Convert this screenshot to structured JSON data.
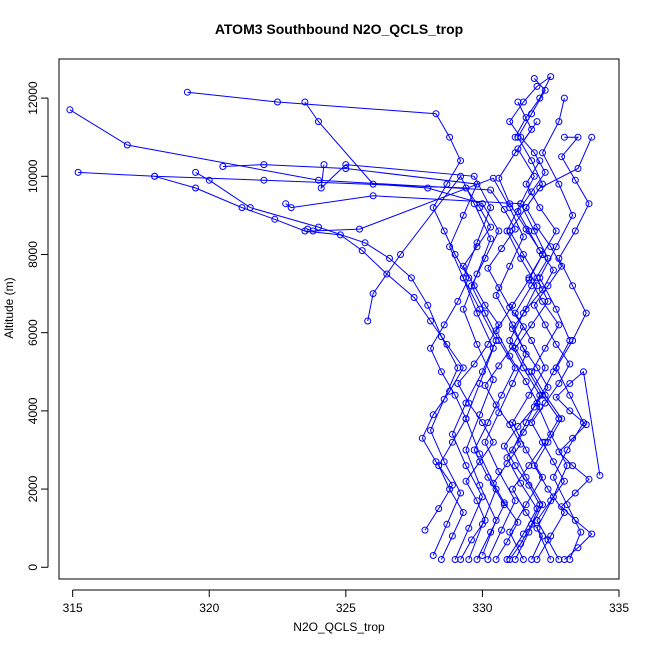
{
  "chart_data": {
    "type": "line",
    "title": "ATOM3 Southbound N2O_QCLS_trop",
    "xlabel": "N2O_QCLS_trop",
    "ylabel": "Altitude (m)",
    "xlim": [
      314.5,
      335
    ],
    "ylim": [
      -300,
      13000
    ],
    "xticks": [
      315,
      320,
      325,
      330,
      335
    ],
    "yticks": [
      0,
      2000,
      4000,
      6000,
      8000,
      10000,
      12000
    ],
    "grid": false,
    "legend": "none",
    "marker": "open-circle",
    "color": "#0000ff",
    "series": [
      {
        "x": [
          331.0,
          331.4,
          331.8,
          332.1,
          331.7,
          331.2,
          330.8,
          331.3,
          331.9,
          332.4,
          332.0,
          331.5,
          331.1,
          331.6,
          332.2,
          332.6,
          332.1,
          331.7,
          331.3,
          331.8,
          332.3,
          331.9,
          331.4,
          331.0,
          331.5,
          332.0,
          332.5,
          332.1,
          331.6,
          331.2
        ],
        "y": [
          200,
          600,
          1100,
          1600,
          2100,
          2600,
          3100,
          3600,
          4100,
          4600,
          5100,
          5600,
          6100,
          6600,
          7100,
          7600,
          8100,
          8600,
          9100,
          9600,
          10100,
          10600,
          11000,
          11400,
          11900,
          12300,
          12550,
          12000,
          11500,
          11000
        ]
      },
      {
        "x": [
          329.2,
          329.6,
          330.1,
          329.8,
          329.4,
          329.9,
          330.4,
          330.0,
          329.5,
          329.1,
          329.7,
          330.2,
          330.6,
          330.1,
          329.7,
          329.3,
          329.8,
          330.3,
          329.9,
          329.4,
          322.0,
          318.0,
          315.2
        ],
        "y": [
          200,
          700,
          1200,
          1700,
          2200,
          2700,
          3200,
          3700,
          4200,
          4700,
          5200,
          5700,
          6200,
          6700,
          7200,
          7700,
          8200,
          8700,
          9200,
          9700,
          9900,
          10000,
          10100
        ]
      },
      {
        "x": [
          332.8,
          332.4,
          332.0,
          332.5,
          333.0,
          332.6,
          332.2,
          331.8,
          332.3,
          332.8,
          333.2,
          332.7,
          332.3,
          331.9,
          332.4,
          332.9,
          332.5,
          332.0,
          331.6,
          332.1,
          333.5,
          334.0
        ],
        "y": [
          200,
          700,
          1200,
          1700,
          2200,
          2700,
          3200,
          3700,
          4200,
          4700,
          5200,
          5700,
          6200,
          6700,
          7200,
          7700,
          8200,
          8700,
          9200,
          9700,
          10200,
          11000
        ]
      },
      {
        "x": [
          330.5,
          330.9,
          331.3,
          330.8,
          330.4,
          330.9,
          331.4,
          331.0,
          330.5,
          330.1,
          330.6,
          331.1,
          331.5,
          331.0,
          330.6,
          330.2,
          330.7,
          331.2,
          330.8,
          330.3,
          324.0,
          317.0,
          314.9
        ],
        "y": [
          200,
          650,
          1150,
          1650,
          2150,
          2650,
          3150,
          3650,
          4150,
          4650,
          5150,
          5650,
          6150,
          6650,
          7150,
          7650,
          8150,
          8650,
          9150,
          9650,
          9900,
          10800,
          11700
        ]
      },
      {
        "x": [
          328.5,
          328.9,
          329.3,
          328.8,
          328.4,
          328.9,
          329.4,
          329.0,
          328.5,
          328.1,
          328.6,
          329.1,
          329.5,
          329.0,
          328.6,
          328.2,
          328.7,
          329.2,
          328.8,
          328.3,
          322.5,
          319.2
        ],
        "y": [
          200,
          800,
          1400,
          2000,
          2600,
          3200,
          3800,
          4400,
          5000,
          5600,
          6200,
          6800,
          7400,
          8000,
          8600,
          9200,
          9800,
          10400,
          11000,
          11600,
          11900,
          12150
        ]
      },
      {
        "x": [
          331.8,
          332.2,
          331.6,
          331.1,
          331.7,
          332.3,
          332.8,
          332.2,
          331.7,
          331.2,
          331.8,
          332.4,
          332.0,
          331.5,
          331.0,
          331.6,
          332.2,
          331.8,
          331.3,
          331.8,
          332.3,
          331.9
        ],
        "y": [
          200,
          800,
          1400,
          2000,
          2600,
          3200,
          3800,
          4400,
          5000,
          5600,
          6200,
          6800,
          7400,
          8000,
          8600,
          9200,
          9800,
          10400,
          11000,
          11600,
          12200,
          12500
        ]
      },
      {
        "x": [
          327.9,
          328.4,
          328.9,
          328.3,
          327.8,
          328.2,
          328.8,
          329.3,
          328.7,
          328.1,
          327.5,
          326.5,
          325.6,
          324.8,
          323.5,
          322.4,
          321.2,
          319.5,
          318.0
        ],
        "y": [
          950,
          1500,
          2100,
          2700,
          3300,
          3900,
          4500,
          5100,
          5700,
          6300,
          6900,
          7500,
          8100,
          8500,
          8600,
          8900,
          9200,
          9700,
          10000
        ]
      },
      {
        "x": [
          329.8,
          330.3,
          330.8,
          330.2,
          329.7,
          330.2,
          330.7,
          331.2,
          330.6,
          330.1,
          329.6,
          330.1,
          330.6,
          330.0,
          328.0,
          326.0,
          324.0,
          323.5
        ],
        "y": [
          200,
          900,
          1600,
          2300,
          3000,
          3700,
          4400,
          5100,
          5800,
          6500,
          7200,
          7900,
          8600,
          9300,
          9700,
          9800,
          11400,
          11900
        ]
      },
      {
        "x": [
          333.2,
          333.6,
          333.1,
          332.6,
          333.1,
          333.7,
          333.2,
          332.7,
          333.3,
          333.8,
          333.3,
          332.8,
          333.4,
          333.9,
          333.4,
          332.9,
          333.5,
          333.0
        ],
        "y": [
          200,
          900,
          1600,
          2300,
          3000,
          3700,
          4400,
          5100,
          5800,
          6500,
          7200,
          7900,
          8600,
          9300,
          9900,
          10500,
          11000,
          11000
        ]
      },
      {
        "x": [
          330.9,
          331.5,
          332.0,
          331.4,
          330.9,
          331.5,
          332.1,
          331.6,
          331.0,
          330.5,
          331.1,
          331.7,
          332.2,
          331.6,
          331.0,
          330.6,
          331.2,
          331.8,
          331.3
        ],
        "y": [
          200,
          850,
          1500,
          2150,
          2800,
          3450,
          4100,
          4750,
          5400,
          6050,
          6700,
          7350,
          8000,
          8650,
          9300,
          9950,
          10600,
          11200,
          11900
        ]
      },
      {
        "x": [
          329.0,
          329.5,
          330.0,
          329.4,
          328.9,
          329.4,
          330.0,
          330.5,
          329.9,
          329.3,
          328.8,
          329.3,
          329.8,
          325.0,
          322.0,
          320.5
        ],
        "y": [
          200,
          1000,
          1800,
          2600,
          3400,
          4200,
          5000,
          5800,
          6600,
          7400,
          8200,
          9000,
          9800,
          10200,
          10300,
          10250
        ]
      },
      {
        "x": [
          332.5,
          332.0,
          332.6,
          333.1,
          332.5,
          332.0,
          332.6,
          333.2,
          332.7,
          332.1,
          332.7,
          333.3,
          332.8,
          332.2,
          332.8,
          333.0
        ],
        "y": [
          200,
          1000,
          1800,
          2600,
          3400,
          4200,
          5000,
          5800,
          6600,
          7400,
          8200,
          9000,
          9800,
          10600,
          11400,
          12000
        ]
      },
      {
        "x": [
          331.5,
          331.0,
          331.6,
          332.2,
          331.6,
          331.1,
          331.7,
          332.3,
          331.8,
          331.2,
          331.8,
          332.4,
          331.9,
          331.4,
          326.0,
          323.0,
          322.8
        ],
        "y": [
          200,
          900,
          1600,
          2300,
          3000,
          3700,
          4400,
          5100,
          5800,
          6500,
          7200,
          7900,
          8600,
          9300,
          9500,
          9200,
          9300
        ]
      },
      {
        "x": [
          330.2,
          330.7,
          331.2,
          330.6,
          330.1,
          330.6,
          331.1,
          331.6,
          331.1,
          330.5,
          331.0,
          331.5,
          331.0,
          330.4,
          325.5,
          323.8,
          323.6
        ],
        "y": [
          200,
          950,
          1700,
          2450,
          3200,
          3950,
          4700,
          5450,
          6200,
          6950,
          7700,
          8450,
          9200,
          9950,
          8650,
          8600,
          8650
        ]
      },
      {
        "x": [
          333.0,
          333.5,
          334.0,
          333.4,
          332.9,
          333.4,
          333.9,
          333.3,
          332.8,
          333.3,
          333.8,
          333.2,
          332.7,
          333.2,
          333.7,
          334.3
        ],
        "y": [
          200,
          500,
          850,
          1200,
          1550,
          1900,
          2250,
          2600,
          2950,
          3300,
          3650,
          4000,
          4350,
          4700,
          5000,
          2350
        ]
      },
      {
        "x": [
          328.2,
          328.7,
          329.2,
          328.6,
          328.1,
          328.6,
          329.1,
          328.5,
          328.0,
          327.4,
          326.6,
          325.7,
          324.0,
          321.5,
          320.0,
          319.5
        ],
        "y": [
          300,
          1100,
          1900,
          2700,
          3500,
          4300,
          5100,
          5900,
          6700,
          7400,
          7900,
          8300,
          8700,
          9200,
          9900,
          10100
        ]
      },
      {
        "x": [
          331.2,
          331.7,
          332.2,
          331.6,
          331.1,
          331.6,
          332.1,
          331.5,
          331.0,
          331.5,
          332.0,
          331.4,
          330.9,
          331.4,
          331.9,
          331.3,
          332.0
        ],
        "y": [
          200,
          900,
          1600,
          2300,
          3000,
          3700,
          4400,
          5100,
          5800,
          6500,
          7200,
          7900,
          8600,
          9300,
          10000,
          10700,
          11400
        ]
      },
      {
        "x": [
          329.5,
          330.0,
          330.5,
          329.9,
          329.4,
          329.9,
          330.4,
          329.8,
          329.3,
          329.8,
          330.3,
          329.7,
          325.0,
          324.1,
          324.2
        ],
        "y": [
          200,
          1100,
          2000,
          2900,
          3800,
          4700,
          5600,
          6500,
          7400,
          8300,
          9200,
          10000,
          10300,
          9700,
          10300
        ]
      },
      {
        "x": [
          332.0,
          332.5,
          333.0,
          332.4,
          331.9,
          332.4,
          332.9,
          332.3,
          331.8,
          332.3,
          332.8,
          332.2,
          331.7,
          332.2,
          332.7,
          332.1,
          331.6,
          332.1
        ],
        "y": [
          200,
          800,
          1400,
          2000,
          2600,
          3200,
          3800,
          4400,
          5000,
          5600,
          6200,
          6800,
          7400,
          8000,
          8600,
          9200,
          9800,
          10400
        ]
      },
      {
        "x": [
          330.0,
          330.5,
          329.9,
          329.4,
          329.9,
          330.4,
          329.8,
          329.3,
          329.8,
          330.3,
          329.7,
          329.2,
          327.0,
          326.0,
          325.8
        ],
        "y": [
          300,
          1200,
          2100,
          3000,
          3900,
          4800,
          5700,
          6600,
          7500,
          8400,
          9300,
          10000,
          8000,
          7000,
          6300
        ]
      }
    ]
  }
}
